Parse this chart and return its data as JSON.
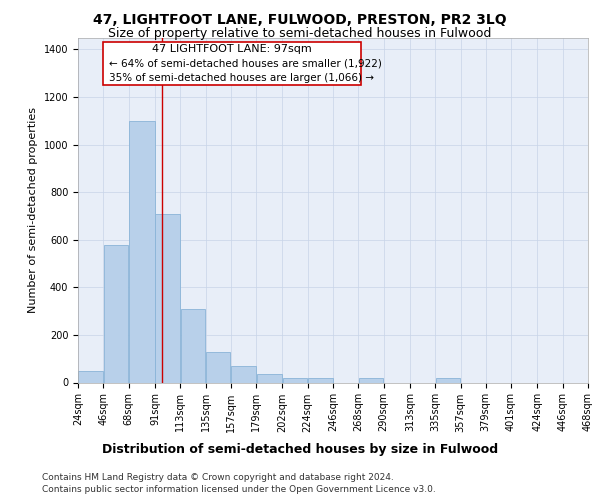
{
  "title": "47, LIGHTFOOT LANE, FULWOOD, PRESTON, PR2 3LQ",
  "subtitle": "Size of property relative to semi-detached houses in Fulwood",
  "xlabel": "Distribution of semi-detached houses by size in Fulwood",
  "ylabel": "Number of semi-detached properties",
  "footnote1": "Contains HM Land Registry data © Crown copyright and database right 2024.",
  "footnote2": "Contains public sector information licensed under the Open Government Licence v3.0.",
  "property_label": "47 LIGHTFOOT LANE: 97sqm",
  "smaller_text": "← 64% of semi-detached houses are smaller (1,922)",
  "larger_text": "35% of semi-detached houses are larger (1,066) →",
  "bar_left_edges": [
    24,
    46,
    68,
    91,
    113,
    135,
    157,
    179,
    202,
    224,
    246,
    268,
    290,
    313,
    335,
    357,
    379,
    401,
    424,
    446
  ],
  "bar_widths": [
    22,
    22,
    23,
    22,
    22,
    22,
    22,
    23,
    22,
    22,
    22,
    22,
    23,
    22,
    22,
    22,
    22,
    23,
    22,
    22
  ],
  "bar_heights": [
    50,
    580,
    1100,
    710,
    310,
    130,
    70,
    35,
    20,
    20,
    0,
    20,
    0,
    0,
    20,
    0,
    0,
    0,
    0,
    0
  ],
  "bar_color": "#b8d0ea",
  "bar_edge_color": "#8ab4d8",
  "vline_color": "#cc0000",
  "vline_x": 97,
  "box_color": "#ffffff",
  "box_edge_color": "#cc0000",
  "ylim": [
    0,
    1450
  ],
  "yticks": [
    0,
    200,
    400,
    600,
    800,
    1000,
    1200,
    1400
  ],
  "xtick_labels": [
    "24sqm",
    "46sqm",
    "68sqm",
    "91sqm",
    "113sqm",
    "135sqm",
    "157sqm",
    "179sqm",
    "202sqm",
    "224sqm",
    "246sqm",
    "268sqm",
    "290sqm",
    "313sqm",
    "335sqm",
    "357sqm",
    "379sqm",
    "401sqm",
    "424sqm",
    "446sqm",
    "468sqm"
  ],
  "plot_bg_color": "#e8eef8",
  "title_fontsize": 10,
  "subtitle_fontsize": 9,
  "xlabel_fontsize": 9,
  "ylabel_fontsize": 8,
  "tick_fontsize": 7,
  "annotation_fontsize": 8,
  "footnote_fontsize": 6.5
}
